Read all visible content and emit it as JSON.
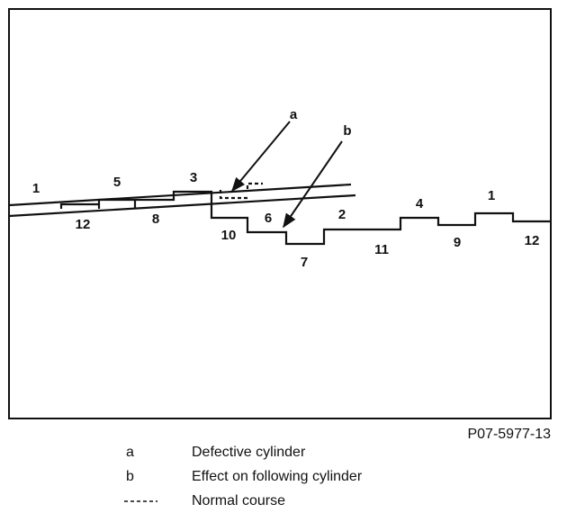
{
  "figure": {
    "cylinder_labels": [
      "1",
      "5",
      "3",
      "12",
      "8",
      "10",
      "6",
      "2",
      "7",
      "11",
      "4",
      "9",
      "1",
      "12"
    ],
    "markers": [
      "a",
      "b"
    ],
    "figure_id": "P07-5977-13"
  },
  "legend": [
    {
      "key": "a",
      "label": "Defective cylinder"
    },
    {
      "key": "b",
      "label": "Effect on following cylinder"
    },
    {
      "label": "Normal course"
    }
  ]
}
